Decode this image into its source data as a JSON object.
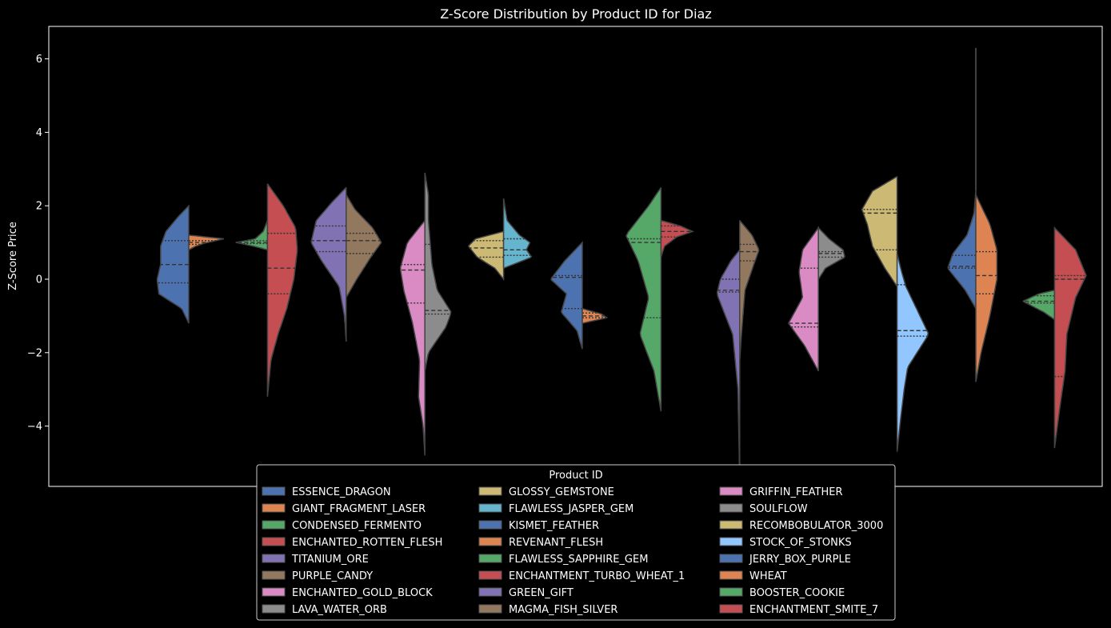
{
  "chart_data": {
    "type": "violin",
    "split": true,
    "title": "Z-Score Distribution by Product ID for Diaz",
    "xlabel": "",
    "ylabel": "Z-Score Price",
    "ylim": [
      -5.6,
      6.9
    ],
    "yticks": [
      6,
      4,
      2,
      0,
      -2,
      -4
    ],
    "ytick_labels": [
      "6",
      "4",
      "2",
      "0",
      "−2",
      "−4"
    ],
    "grid": false,
    "background": "#000000",
    "legend": {
      "title": "Product ID",
      "placement": "lower-center",
      "columns": 3
    },
    "series": [
      {
        "name": "ESSENCE_DRAGON",
        "color": "#4c72b0",
        "slot": 0,
        "side": "left",
        "min": -1.2,
        "max": 2.0,
        "q1": -0.1,
        "median": 0.4,
        "q3": 1.05,
        "profile": [
          [
            -1.2,
            0
          ],
          [
            -0.8,
            0.2
          ],
          [
            -0.4,
            0.85
          ],
          [
            0,
            0.9
          ],
          [
            0.4,
            0.8
          ],
          [
            0.9,
            0.8
          ],
          [
            1.3,
            0.65
          ],
          [
            1.7,
            0.3
          ],
          [
            2.0,
            0
          ]
        ]
      },
      {
        "name": "GIANT_FRAGMENT_LASER",
        "color": "#dd8452",
        "slot": 0,
        "side": "right",
        "min": 0.8,
        "max": 1.2,
        "q1": 0.95,
        "median": 1.0,
        "q3": 1.05,
        "profile": [
          [
            0.8,
            0
          ],
          [
            0.9,
            0.2
          ],
          [
            0.98,
            0.45
          ],
          [
            1.1,
            1.0
          ],
          [
            1.2,
            0
          ]
        ]
      },
      {
        "name": "CONDENSED_FERMENTO",
        "color": "#55a868",
        "slot": 1,
        "side": "left",
        "min": 0.8,
        "max": 1.6,
        "q1": 0.97,
        "median": 1.0,
        "q3": 1.05,
        "profile": [
          [
            0.8,
            0
          ],
          [
            0.9,
            0.4
          ],
          [
            1.0,
            0.9
          ],
          [
            1.1,
            0.35
          ],
          [
            1.3,
            0.12
          ],
          [
            1.6,
            0
          ]
        ]
      },
      {
        "name": "ENCHANTED_ROTTEN_FLESH",
        "color": "#c44e52",
        "slot": 1,
        "side": "right",
        "min": -3.2,
        "max": 2.6,
        "q1": -0.4,
        "median": 0.3,
        "q3": 1.25,
        "profile": [
          [
            -3.2,
            0
          ],
          [
            -2.2,
            0.1
          ],
          [
            -1.5,
            0.3
          ],
          [
            -0.8,
            0.55
          ],
          [
            0,
            0.75
          ],
          [
            0.8,
            0.85
          ],
          [
            1.4,
            0.8
          ],
          [
            2.0,
            0.45
          ],
          [
            2.6,
            0
          ]
        ]
      },
      {
        "name": "TITANIUM_ORE",
        "color": "#8172b3",
        "slot": 2,
        "side": "left",
        "min": -1.7,
        "max": 2.5,
        "q1": 0.75,
        "median": 1.05,
        "q3": 1.45,
        "profile": [
          [
            -1.7,
            0
          ],
          [
            -1.0,
            0.05
          ],
          [
            -0.2,
            0.2
          ],
          [
            0.5,
            0.7
          ],
          [
            1.0,
            1.0
          ],
          [
            1.6,
            0.85
          ],
          [
            2.1,
            0.4
          ],
          [
            2.5,
            0
          ]
        ]
      },
      {
        "name": "PURPLE_CANDY",
        "color": "#937860",
        "slot": 2,
        "side": "right",
        "min": -0.5,
        "max": 2.3,
        "q1": 0.7,
        "median": 1.05,
        "q3": 1.25,
        "profile": [
          [
            -0.5,
            0
          ],
          [
            0,
            0.3
          ],
          [
            0.6,
            0.7
          ],
          [
            1.0,
            1.0
          ],
          [
            1.4,
            0.75
          ],
          [
            1.9,
            0.25
          ],
          [
            2.3,
            0
          ]
        ]
      },
      {
        "name": "ENCHANTED_GOLD_BLOCK",
        "color": "#da8bc3",
        "slot": 3,
        "side": "left",
        "min": -4.8,
        "max": 1.6,
        "q1": -0.65,
        "median": 0.25,
        "q3": 0.4,
        "profile": [
          [
            -4.8,
            0
          ],
          [
            -4.0,
            0.05
          ],
          [
            -3.2,
            0.18
          ],
          [
            -2.2,
            0.15
          ],
          [
            -1.2,
            0.35
          ],
          [
            -0.3,
            0.6
          ],
          [
            0.3,
            0.7
          ],
          [
            1.0,
            0.5
          ],
          [
            1.6,
            0
          ]
        ]
      },
      {
        "name": "LAVA_WATER_ORB",
        "color": "#8c8c8c",
        "slot": 3,
        "side": "right",
        "min": -2.5,
        "max": 2.9,
        "q1": -0.95,
        "median": -0.85,
        "q3": 0.95,
        "profile": [
          [
            -2.5,
            0
          ],
          [
            -2.0,
            0.1
          ],
          [
            -1.3,
            0.6
          ],
          [
            -0.9,
            0.75
          ],
          [
            -0.3,
            0.35
          ],
          [
            0.4,
            0.2
          ],
          [
            1.0,
            0.15
          ],
          [
            1.6,
            0.1
          ],
          [
            2.3,
            0.1
          ],
          [
            2.9,
            0
          ]
        ]
      },
      {
        "name": "GLOSSY_GEMSTONE",
        "color": "#ccb974",
        "slot": 4,
        "side": "left",
        "min": 0.0,
        "max": 1.3,
        "q1": 0.6,
        "median": 0.85,
        "q3": 1.05,
        "profile": [
          [
            0.0,
            0
          ],
          [
            0.3,
            0.25
          ],
          [
            0.6,
            0.75
          ],
          [
            0.9,
            1.0
          ],
          [
            1.1,
            0.8
          ],
          [
            1.3,
            0
          ]
        ]
      },
      {
        "name": "FLAWLESS_JASPER_GEM",
        "color": "#64b5cd",
        "slot": 4,
        "side": "right",
        "min": 0.3,
        "max": 2.2,
        "q1": 0.65,
        "median": 0.8,
        "q3": 1.1,
        "profile": [
          [
            0.3,
            0
          ],
          [
            0.6,
            0.8
          ],
          [
            0.8,
            0.65
          ],
          [
            1.0,
            0.75
          ],
          [
            1.2,
            0.45
          ],
          [
            1.6,
            0.1
          ],
          [
            2.2,
            0
          ]
        ]
      },
      {
        "name": "KISMET_FEATHER",
        "color": "#4c72b0",
        "slot": 5,
        "side": "left",
        "min": -1.9,
        "max": 1.0,
        "q1": -0.8,
        "median": 0.05,
        "q3": 0.1,
        "profile": [
          [
            -1.9,
            0
          ],
          [
            -1.4,
            0.15
          ],
          [
            -0.9,
            0.6
          ],
          [
            -0.4,
            0.45
          ],
          [
            0,
            0.9
          ],
          [
            0.5,
            0.5
          ],
          [
            1.0,
            0
          ]
        ]
      },
      {
        "name": "REVENANT_FLESH",
        "color": "#dd8452",
        "slot": 5,
        "side": "right",
        "min": -1.2,
        "max": -0.8,
        "q1": -1.05,
        "median": -1.0,
        "q3": -0.92,
        "profile": [
          [
            -1.2,
            0
          ],
          [
            -1.05,
            0.7
          ],
          [
            -0.95,
            0.55
          ],
          [
            -0.8,
            0
          ]
        ]
      },
      {
        "name": "FLAWLESS_SAPPHIRE_GEM",
        "color": "#55a868",
        "slot": 6,
        "side": "left",
        "min": -3.6,
        "max": 2.5,
        "q1": -1.05,
        "median": 1.0,
        "q3": 1.1,
        "profile": [
          [
            -3.6,
            0
          ],
          [
            -2.5,
            0.2
          ],
          [
            -1.5,
            0.6
          ],
          [
            -0.5,
            0.35
          ],
          [
            0.5,
            0.65
          ],
          [
            1.2,
            1.0
          ],
          [
            2.0,
            0.35
          ],
          [
            2.5,
            0
          ]
        ]
      },
      {
        "name": "ENCHANTMENT_TURBO_WHEAT_1",
        "color": "#c44e52",
        "slot": 6,
        "side": "right",
        "min": 0.6,
        "max": 1.6,
        "q1": 1.15,
        "median": 1.3,
        "q3": 1.45,
        "profile": [
          [
            0.6,
            0
          ],
          [
            0.9,
            0.1
          ],
          [
            1.15,
            0.45
          ],
          [
            1.3,
            0.9
          ],
          [
            1.45,
            0.55
          ],
          [
            1.6,
            0
          ]
        ]
      },
      {
        "name": "GREEN_GIFT",
        "color": "#8172b3",
        "slot": 7,
        "side": "left",
        "min": -5.5,
        "max": 0.8,
        "q1": -0.35,
        "median": -0.3,
        "q3": 0.0,
        "profile": [
          [
            -5.5,
            0
          ],
          [
            -3.0,
            0.05
          ],
          [
            -1.5,
            0.2
          ],
          [
            -0.4,
            0.65
          ],
          [
            0,
            0.55
          ],
          [
            0.5,
            0.25
          ],
          [
            0.8,
            0
          ]
        ]
      },
      {
        "name": "MAGMA_FISH_SILVER",
        "color": "#937860",
        "slot": 7,
        "side": "right",
        "min": -2.2,
        "max": 1.6,
        "q1": 0.5,
        "median": 0.75,
        "q3": 0.95,
        "profile": [
          [
            -2.2,
            0
          ],
          [
            -1.5,
            0.05
          ],
          [
            -0.3,
            0.15
          ],
          [
            0.4,
            0.4
          ],
          [
            0.8,
            0.55
          ],
          [
            1.2,
            0.35
          ],
          [
            1.6,
            0
          ]
        ]
      },
      {
        "name": "GRIFFIN_FEATHER",
        "color": "#da8bc3",
        "slot": 8,
        "side": "left",
        "min": -2.5,
        "max": 1.4,
        "q1": -1.3,
        "median": -1.2,
        "q3": 0.3,
        "profile": [
          [
            -2.5,
            0
          ],
          [
            -1.8,
            0.4
          ],
          [
            -1.2,
            0.85
          ],
          [
            -0.5,
            0.45
          ],
          [
            0.2,
            0.55
          ],
          [
            0.8,
            0.45
          ],
          [
            1.4,
            0
          ]
        ]
      },
      {
        "name": "SOULFLOW",
        "color": "#8c8c8c",
        "slot": 8,
        "side": "right",
        "min": 0.0,
        "max": 1.4,
        "q1": 0.6,
        "median": 0.7,
        "q3": 0.75,
        "profile": [
          [
            0.0,
            0
          ],
          [
            0.3,
            0.2
          ],
          [
            0.6,
            0.75
          ],
          [
            0.8,
            0.7
          ],
          [
            1.1,
            0.3
          ],
          [
            1.4,
            0
          ]
        ]
      },
      {
        "name": "RECOMBOBULATOR_3000",
        "color": "#ccb974",
        "slot": 9,
        "side": "left",
        "min": -0.2,
        "max": 2.8,
        "q1": 0.8,
        "median": 1.8,
        "q3": 1.9,
        "profile": [
          [
            -0.2,
            0
          ],
          [
            0.3,
            0.35
          ],
          [
            0.9,
            0.7
          ],
          [
            1.5,
            0.85
          ],
          [
            1.9,
            1.0
          ],
          [
            2.4,
            0.7
          ],
          [
            2.8,
            0
          ]
        ]
      },
      {
        "name": "STOCK_OF_STONKS",
        "color": "#92c6ff",
        "slot": 9,
        "side": "right",
        "min": -4.7,
        "max": 0.7,
        "q1": -1.55,
        "median": -1.4,
        "q3": -0.15,
        "profile": [
          [
            -4.7,
            0
          ],
          [
            -3.8,
            0.1
          ],
          [
            -3.0,
            0.2
          ],
          [
            -2.4,
            0.3
          ],
          [
            -1.5,
            0.9
          ],
          [
            -0.8,
            0.55
          ],
          [
            -0.2,
            0.25
          ],
          [
            0.3,
            0.1
          ],
          [
            0.7,
            0
          ]
        ]
      },
      {
        "name": "JERRY_BOX_PURPLE",
        "color": "#4c72b0",
        "slot": 10,
        "side": "left",
        "min": -0.8,
        "max": 2.4,
        "q1": 0.3,
        "median": 0.35,
        "q3": 0.65,
        "profile": [
          [
            -0.8,
            0
          ],
          [
            -0.3,
            0.3
          ],
          [
            0.3,
            0.8
          ],
          [
            0.7,
            0.65
          ],
          [
            1.2,
            0.25
          ],
          [
            1.8,
            0.05
          ],
          [
            2.4,
            0
          ]
        ]
      },
      {
        "name": "WHEAT",
        "color": "#dd8452",
        "slot": 10,
        "side": "right",
        "min": -2.8,
        "max": 2.3,
        "q1": -0.4,
        "median": 0.1,
        "q3": 0.75,
        "profile": [
          [
            -2.8,
            0
          ],
          [
            -2.0,
            0.15
          ],
          [
            -1.0,
            0.4
          ],
          [
            0,
            0.6
          ],
          [
            0.8,
            0.6
          ],
          [
            1.5,
            0.4
          ],
          [
            2.3,
            0
          ]
        ]
      },
      {
        "name": "BOOSTER_COOKIE",
        "color": "#55a868",
        "slot": 11,
        "side": "left",
        "min": -1.1,
        "max": -0.3,
        "q1": -0.65,
        "median": -0.6,
        "q3": -0.45,
        "profile": [
          [
            -1.1,
            0
          ],
          [
            -0.9,
            0.3
          ],
          [
            -0.6,
            0.9
          ],
          [
            -0.4,
            0.45
          ],
          [
            -0.3,
            0
          ]
        ]
      },
      {
        "name": "ENCHANTMENT_SMITE_7",
        "color": "#c44e52",
        "slot": 11,
        "side": "right",
        "min": -4.6,
        "max": 1.4,
        "q1": -2.65,
        "median": 0.0,
        "q3": 0.1,
        "profile": [
          [
            -4.6,
            0
          ],
          [
            -3.5,
            0.15
          ],
          [
            -2.5,
            0.3
          ],
          [
            -1.5,
            0.35
          ],
          [
            -0.5,
            0.6
          ],
          [
            0.1,
            0.9
          ],
          [
            0.8,
            0.6
          ],
          [
            1.4,
            0
          ]
        ]
      }
    ],
    "extra_lines": [
      {
        "slot": 10,
        "y_from": 2.4,
        "y_to": 6.3
      }
    ]
  }
}
